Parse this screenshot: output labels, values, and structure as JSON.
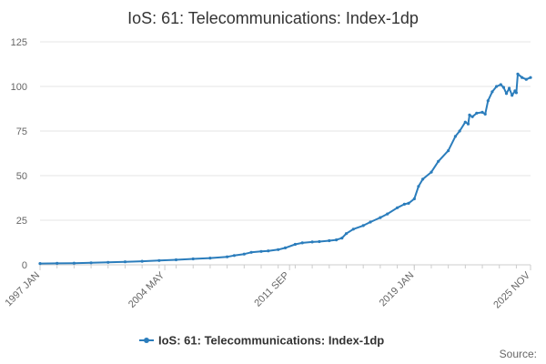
{
  "chart_data": {
    "type": "line",
    "title": "IoS: 61: Telecommunications: Index-1dp",
    "xlabel": "",
    "ylabel": "",
    "x_range": [
      "1997 JAN",
      "2025 NOV"
    ],
    "ylim": [
      0,
      125
    ],
    "y_ticks": [
      0,
      25,
      50,
      75,
      100,
      125
    ],
    "x_tick_labels": [
      "1997 JAN",
      "2004 MAY",
      "2011 SEP",
      "2019 JAN",
      "2025 NOV"
    ],
    "grid": true,
    "legend_position": "bottom",
    "colors": {
      "series": "#2b7dbc",
      "grid": "#e6e6e6",
      "axis": "#cccccc"
    },
    "series": [
      {
        "name": "IoS: 61: Telecommunications: Index-1dp",
        "points": [
          [
            "1997-01",
            0.7
          ],
          [
            "1998-01",
            0.8
          ],
          [
            "1999-01",
            0.9
          ],
          [
            "2000-01",
            1.1
          ],
          [
            "2001-01",
            1.4
          ],
          [
            "2002-01",
            1.7
          ],
          [
            "2003-01",
            2.0
          ],
          [
            "2004-01",
            2.4
          ],
          [
            "2005-01",
            2.8
          ],
          [
            "2006-01",
            3.3
          ],
          [
            "2007-01",
            3.8
          ],
          [
            "2008-01",
            4.5
          ],
          [
            "2008-06",
            5.2
          ],
          [
            "2009-01",
            6.0
          ],
          [
            "2009-06",
            7.0
          ],
          [
            "2010-01",
            7.5
          ],
          [
            "2010-06",
            7.8
          ],
          [
            "2011-01",
            8.5
          ],
          [
            "2011-06",
            9.5
          ],
          [
            "2012-01",
            11.5
          ],
          [
            "2012-06",
            12.3
          ],
          [
            "2013-01",
            12.8
          ],
          [
            "2013-06",
            13.0
          ],
          [
            "2014-01",
            13.5
          ],
          [
            "2014-06",
            14.0
          ],
          [
            "2014-10",
            15.0
          ],
          [
            "2015-01",
            17.5
          ],
          [
            "2015-06",
            20.0
          ],
          [
            "2016-01",
            22.0
          ],
          [
            "2016-06",
            24.0
          ],
          [
            "2017-01",
            26.5
          ],
          [
            "2017-06",
            28.5
          ],
          [
            "2018-01",
            32.0
          ],
          [
            "2018-06",
            34.0
          ],
          [
            "2018-09",
            34.5
          ],
          [
            "2019-01",
            37.0
          ],
          [
            "2019-04",
            44.0
          ],
          [
            "2019-07",
            48.0
          ],
          [
            "2020-01",
            52.0
          ],
          [
            "2020-06",
            58.0
          ],
          [
            "2021-01",
            64.0
          ],
          [
            "2021-06",
            72.0
          ],
          [
            "2021-09",
            75.0
          ],
          [
            "2022-01",
            80.0
          ],
          [
            "2022-03",
            79.0
          ],
          [
            "2022-04",
            84.0
          ],
          [
            "2022-06",
            83.0
          ],
          [
            "2022-09",
            85.0
          ],
          [
            "2023-01",
            85.5
          ],
          [
            "2023-03",
            84.5
          ],
          [
            "2023-05",
            92.0
          ],
          [
            "2023-08",
            97.0
          ],
          [
            "2023-11",
            100.0
          ],
          [
            "2024-02",
            101.0
          ],
          [
            "2024-04",
            99.5
          ],
          [
            "2024-06",
            96.0
          ],
          [
            "2024-08",
            99.0
          ],
          [
            "2024-10",
            95.0
          ],
          [
            "2024-12",
            97.5
          ],
          [
            "2025-01",
            96.5
          ],
          [
            "2025-02",
            107.0
          ],
          [
            "2025-05",
            105.0
          ],
          [
            "2025-08",
            104.0
          ],
          [
            "2025-11",
            105.0
          ]
        ]
      }
    ],
    "source_label": "Source:"
  }
}
